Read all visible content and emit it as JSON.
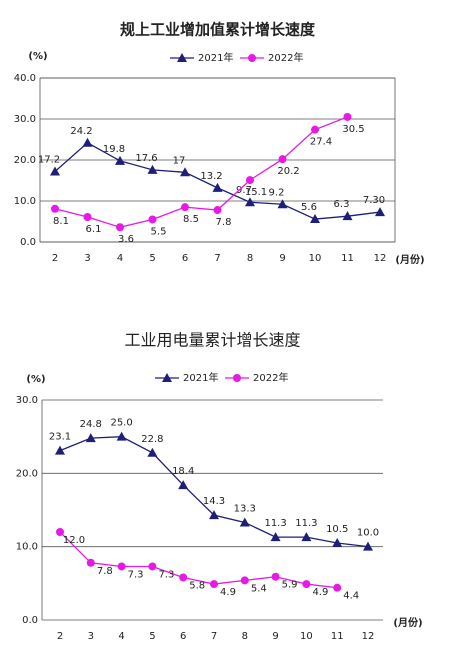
{
  "chart_data": [
    {
      "type": "line",
      "title": "规上工业增加值累计增长速度",
      "y_label": "(%)",
      "x_label": "(月份)",
      "categories": [
        "2",
        "3",
        "4",
        "5",
        "6",
        "7",
        "8",
        "9",
        "10",
        "11",
        "12"
      ],
      "series": [
        {
          "name": "2021年",
          "color": "#1f1f7a",
          "marker": "triangle",
          "values": [
            17.2,
            24.2,
            19.8,
            17.6,
            17,
            13.2,
            9.7,
            9.2,
            5.6,
            6.3,
            7.3
          ],
          "value_labels": [
            "17.2",
            "24.2",
            "19.8",
            "17.6",
            "17",
            "13.2",
            "9.7",
            "9.2",
            "5.6",
            "6.3",
            "7.30"
          ]
        },
        {
          "name": "2022年",
          "color": "#e619e6",
          "marker": "circle",
          "values": [
            8.1,
            6.1,
            3.6,
            5.5,
            8.5,
            7.8,
            15.1,
            20.2,
            27.4,
            30.5,
            null
          ],
          "value_labels": [
            "8.1",
            "6.1",
            "3.6",
            "5.5",
            "8.5",
            "7.8",
            "15.1",
            "20.2",
            "27.4",
            "30.5",
            null
          ]
        }
      ],
      "ylim": [
        0,
        40
      ],
      "yticks": [
        {
          "value": 0,
          "label": "0.0"
        },
        {
          "value": 10,
          "label": "10.0"
        },
        {
          "value": 20,
          "label": "20.0"
        },
        {
          "value": 30,
          "label": "30.0"
        },
        {
          "value": 40,
          "label": "40.0"
        }
      ],
      "grid": true,
      "legend": "top"
    },
    {
      "type": "line",
      "title": "工业用电量累计增长速度",
      "y_label": "(%)",
      "x_label": "(月份)",
      "categories": [
        "2",
        "3",
        "4",
        "5",
        "6",
        "7",
        "8",
        "9",
        "10",
        "11",
        "12"
      ],
      "series": [
        {
          "name": "2021年",
          "color": "#1f1f7a",
          "marker": "triangle",
          "values": [
            23.1,
            24.8,
            25.0,
            22.8,
            18.4,
            14.3,
            13.3,
            11.3,
            11.3,
            10.5,
            10.0
          ],
          "value_labels": [
            "23.1",
            "24.8",
            "25.0",
            "22.8",
            "18.4",
            "14.3",
            "13.3",
            "11.3",
            "11.3",
            "10.5",
            "10.0"
          ]
        },
        {
          "name": "2022年",
          "color": "#e619e6",
          "marker": "circle",
          "values": [
            12.0,
            7.8,
            7.3,
            7.3,
            5.8,
            4.9,
            5.4,
            5.9,
            4.9,
            4.4,
            null
          ],
          "value_labels": [
            "12.0",
            "7.8",
            "7.3",
            "7.3",
            "5.8",
            "4.9",
            "5.4",
            "5.9",
            "4.9",
            "4.4",
            null
          ]
        }
      ],
      "ylim": [
        0,
        30
      ],
      "yticks": [
        {
          "value": 0,
          "label": "0.0"
        },
        {
          "value": 10,
          "label": "10.0"
        },
        {
          "value": 20,
          "label": "20.0"
        },
        {
          "value": 30,
          "label": "30.0"
        }
      ],
      "grid": true,
      "legend": "top"
    }
  ]
}
